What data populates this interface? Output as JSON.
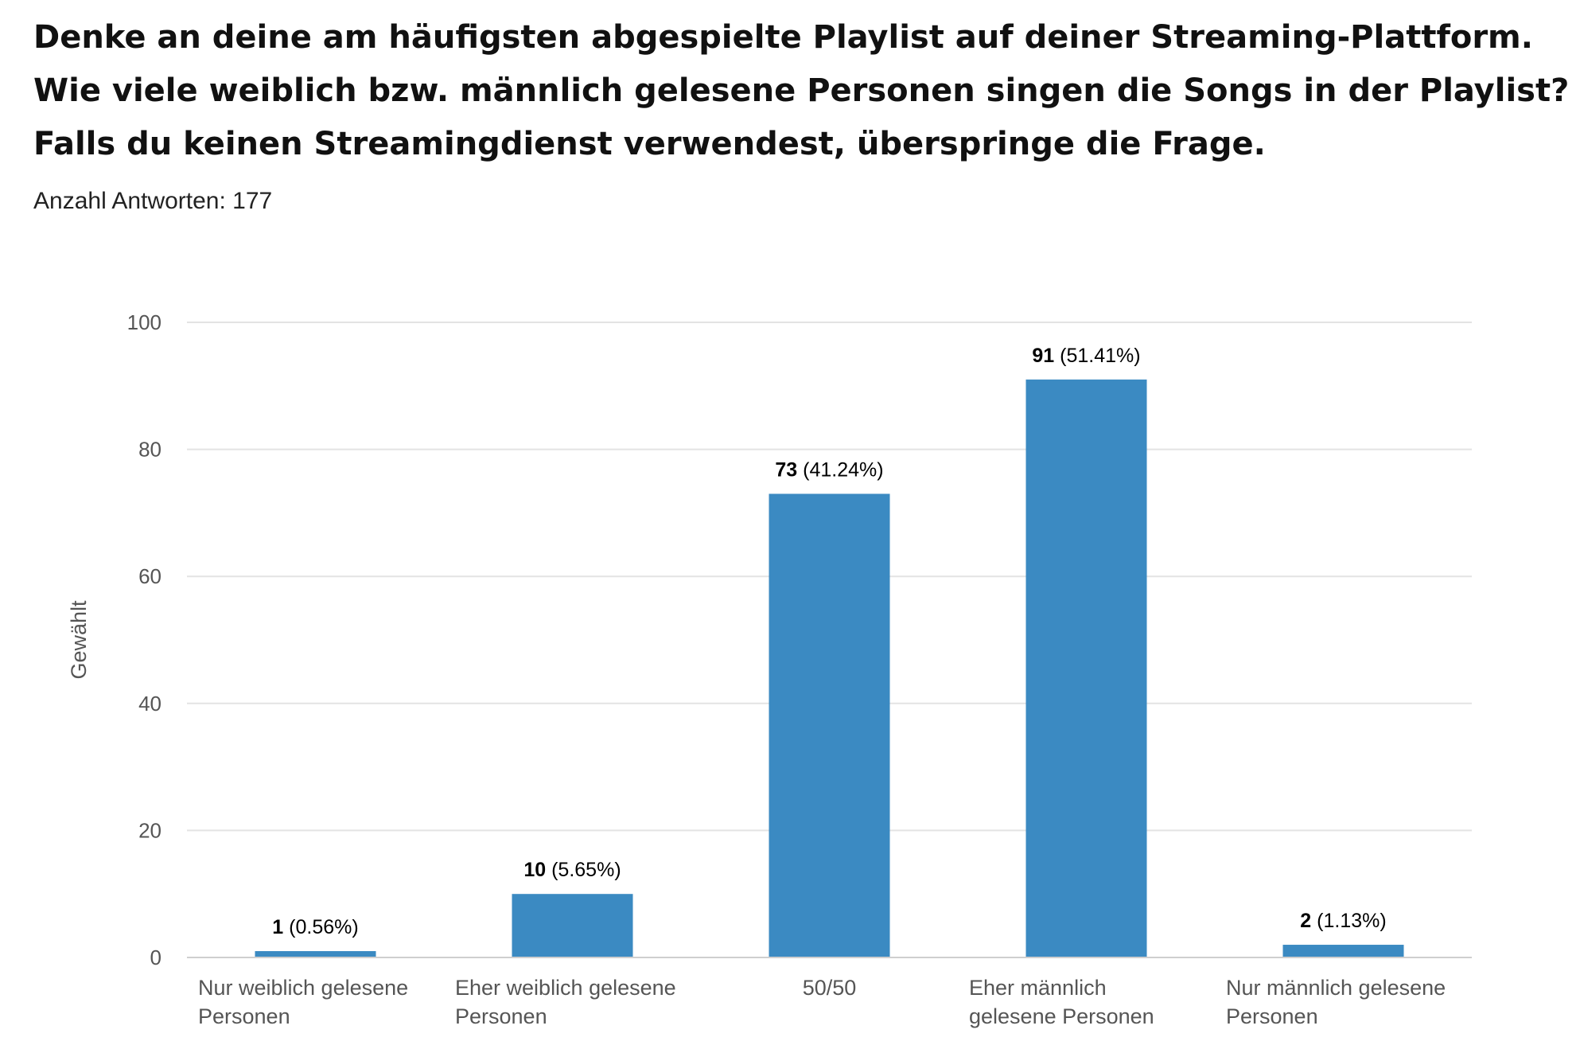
{
  "title_lines": [
    "Denke an deine am häufigsten abgespielte Playlist auf deiner Streaming-Plattform.",
    "Wie viele weiblich bzw. männlich gelesene Personen singen die Songs in der Playlist?",
    "Falls du keinen Streamingdienst verwendest, überspringe die Frage."
  ],
  "responses_text": "Anzahl Antworten: 177",
  "colors": {
    "bar": "#3b8ac2",
    "grid": "#e3e3e3",
    "tick_text": "#555555"
  },
  "chart_data": {
    "type": "bar",
    "categories": [
      [
        "Nur weiblich gelesene",
        "Personen"
      ],
      [
        "Eher weiblich gelesene",
        "Personen"
      ],
      [
        "50/50"
      ],
      [
        "Eher männlich",
        "gelesene Personen"
      ],
      [
        "Nur männlich gelesene",
        "Personen"
      ]
    ],
    "values": [
      1,
      10,
      73,
      91,
      2
    ],
    "percent_labels": [
      "(0.56%)",
      "(5.65%)",
      "(41.24%)",
      "(51.41%)",
      "(1.13%)"
    ],
    "ylabel": "Gewählt",
    "xlabel": "",
    "ylim": [
      0,
      100
    ],
    "yticks": [
      0,
      20,
      40,
      60,
      80,
      100
    ],
    "grid": true,
    "legend": "none"
  }
}
